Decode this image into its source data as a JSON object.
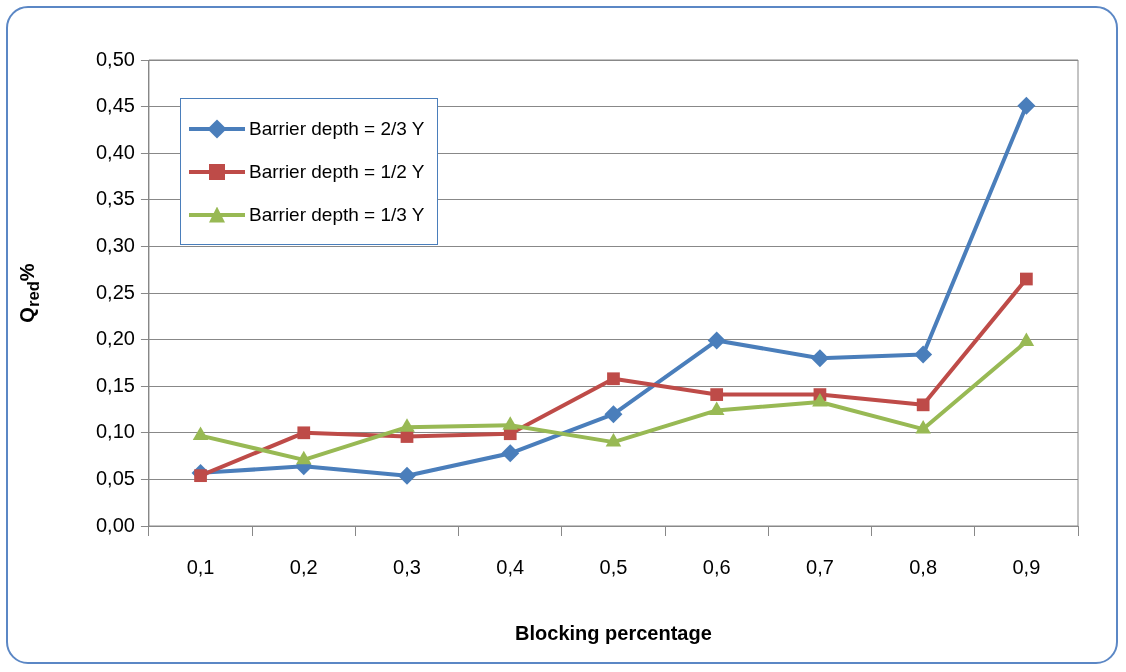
{
  "chart_data": {
    "type": "line",
    "xlabel": "Blocking percentage",
    "ylabel": "Q$_{red}$%",
    "categories": [
      "0,1",
      "0,2",
      "0,3",
      "0,4",
      "0,5",
      "0,6",
      "0,7",
      "0,8",
      "0,9"
    ],
    "series": [
      {
        "name": "Barrier depth = 2/3 Y",
        "color": "#4a7ebb",
        "marker": "diamond",
        "values": [
          0.057,
          0.064,
          0.054,
          0.078,
          0.12,
          0.199,
          0.18,
          0.184,
          0.451
        ]
      },
      {
        "name": "Barrier depth = 1/2 Y",
        "color": "#be4b48",
        "marker": "square",
        "values": [
          0.054,
          0.1,
          0.096,
          0.099,
          0.158,
          0.141,
          0.141,
          0.13,
          0.265
        ]
      },
      {
        "name": "Barrier depth = 1/3 Y",
        "color": "#98b954",
        "marker": "triangle",
        "values": [
          0.097,
          0.071,
          0.106,
          0.108,
          0.09,
          0.124,
          0.133,
          0.104,
          0.198
        ]
      }
    ],
    "ylim": [
      0,
      0.5
    ],
    "yticks": [
      {
        "value": 0,
        "label": "0,00"
      },
      {
        "value": 0.05,
        "label": "0,05"
      },
      {
        "value": 0.1,
        "label": "0,10"
      },
      {
        "value": 0.15,
        "label": "0,15"
      },
      {
        "value": 0.2,
        "label": "0,20"
      },
      {
        "value": 0.25,
        "label": "0,25"
      },
      {
        "value": 0.3,
        "label": "0,30"
      },
      {
        "value": 0.35,
        "label": "0,35"
      },
      {
        "value": 0.4,
        "label": "0,40"
      },
      {
        "value": 0.45,
        "label": "0,45"
      },
      {
        "value": 0.5,
        "label": "0,50"
      }
    ],
    "grid": "y",
    "legend": "top left"
  }
}
